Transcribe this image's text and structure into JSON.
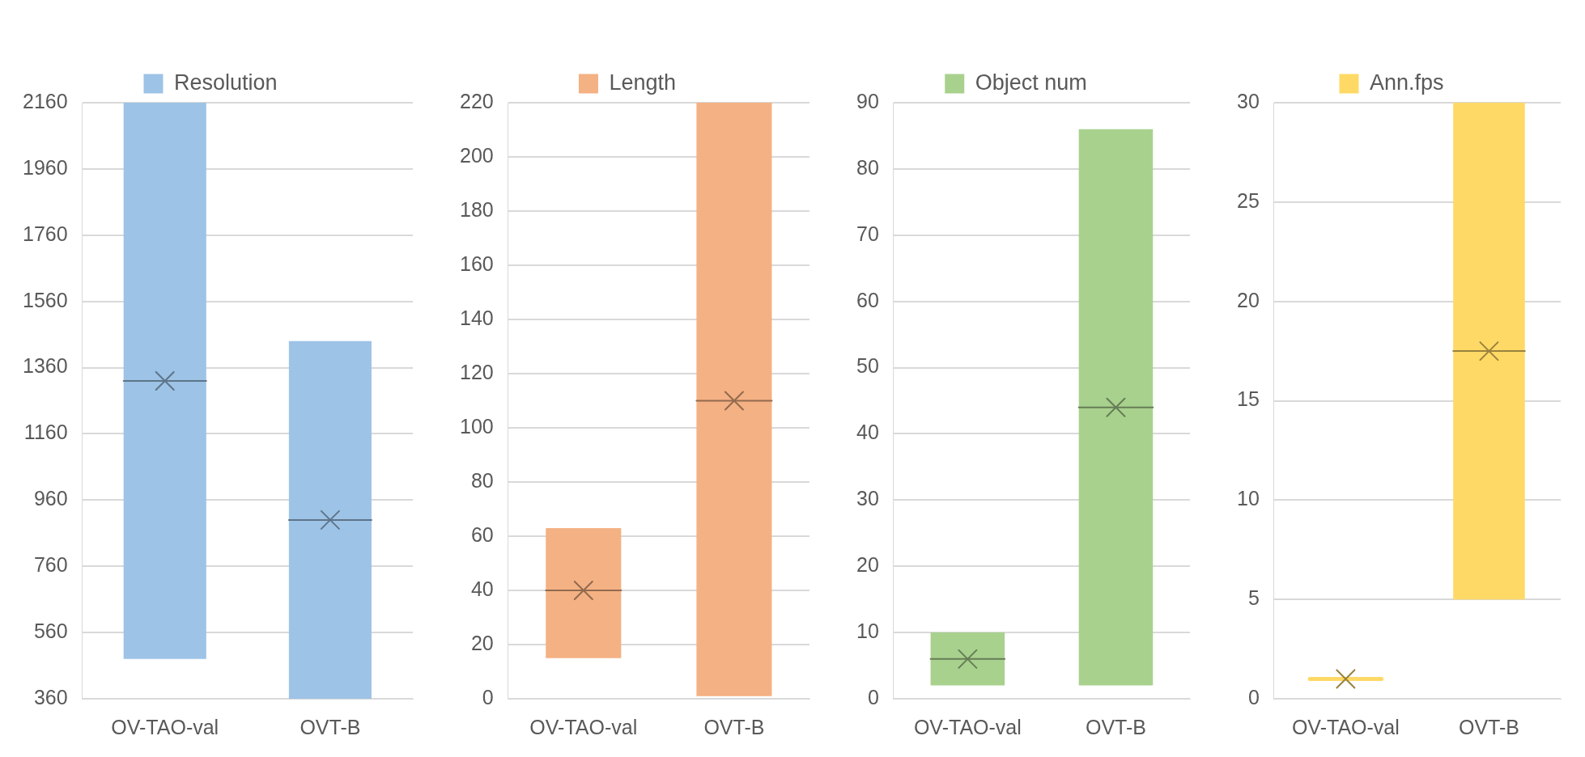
{
  "chart_data": [
    {
      "type": "box",
      "categories": [
        "OV-TAO-val",
        "OVT-B"
      ],
      "series": [
        {
          "name": "Resolution",
          "color": "#9dc3e6",
          "boxes": [
            {
              "low": 480,
              "q1": 480,
              "median": 1320,
              "q3": 2160,
              "high": 2160,
              "mean": 1320
            },
            {
              "low": 360,
              "q1": 360,
              "median": 900,
              "q3": 1440,
              "high": 1440,
              "mean": 900
            }
          ]
        }
      ],
      "ylim": [
        360,
        2160
      ],
      "yticks": [
        360,
        560,
        760,
        960,
        1160,
        1360,
        1560,
        1760,
        1960,
        2160
      ],
      "grid": "y",
      "legend": "top"
    },
    {
      "type": "box",
      "categories": [
        "OV-TAO-val",
        "OVT-B"
      ],
      "series": [
        {
          "name": "Length",
          "color": "#f4b183",
          "boxes": [
            {
              "low": 15,
              "q1": 15,
              "median": 40,
              "q3": 63,
              "high": 63,
              "mean": 40
            },
            {
              "low": 1,
              "q1": 1,
              "median": 110,
              "q3": 220,
              "high": 220,
              "mean": 110
            }
          ]
        }
      ],
      "ylim": [
        0,
        220
      ],
      "yticks": [
        0,
        20,
        40,
        60,
        80,
        100,
        120,
        140,
        160,
        180,
        200,
        220
      ],
      "grid": "y",
      "legend": "top"
    },
    {
      "type": "box",
      "categories": [
        "OV-TAO-val",
        "OVT-B"
      ],
      "series": [
        {
          "name": "Object num",
          "color": "#a9d18e",
          "boxes": [
            {
              "low": 2,
              "q1": 2,
              "median": 6,
              "q3": 10,
              "high": 10,
              "mean": 6
            },
            {
              "low": 2,
              "q1": 2,
              "median": 44,
              "q3": 86,
              "high": 86,
              "mean": 44
            }
          ]
        }
      ],
      "ylim": [
        0,
        90
      ],
      "yticks": [
        0,
        10,
        20,
        30,
        40,
        50,
        60,
        70,
        80,
        90
      ],
      "grid": "y",
      "legend": "top"
    },
    {
      "type": "box",
      "categories": [
        "OV-TAO-val",
        "OVT-B"
      ],
      "series": [
        {
          "name": "Ann.fps",
          "color": "#ffd966",
          "boxes": [
            {
              "low": 1,
              "q1": 1,
              "median": 1,
              "q3": 1,
              "high": 1,
              "mean": 1
            },
            {
              "low": 5,
              "q1": 5,
              "median": 17.5,
              "q3": 30,
              "high": 30,
              "mean": 17.5
            }
          ]
        }
      ],
      "ylim": [
        0,
        30
      ],
      "yticks": [
        0,
        5,
        10,
        15,
        20,
        25,
        30
      ],
      "grid": "y",
      "legend": "top"
    }
  ]
}
